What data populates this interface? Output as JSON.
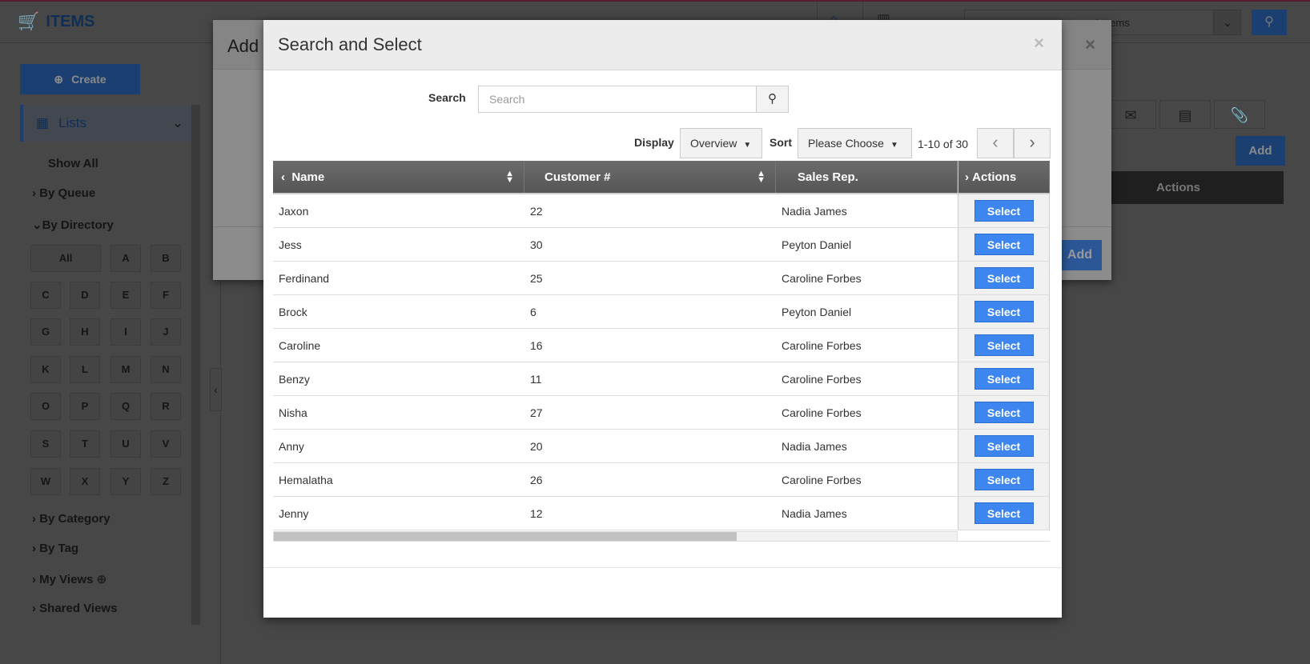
{
  "app": {
    "title": "ITEMS",
    "global_search_placeholder": "search items",
    "accent": "#2a7ae2"
  },
  "sidebar": {
    "create_label": "Create",
    "lists_label": "Lists",
    "show_all": "Show All",
    "by_queue": "By Queue",
    "by_directory": "By Directory",
    "letters": [
      "All",
      "A",
      "B",
      "C",
      "D",
      "E",
      "F",
      "G",
      "H",
      "I",
      "J",
      "K",
      "L",
      "M",
      "N",
      "O",
      "P",
      "Q",
      "R",
      "S",
      "T",
      "U",
      "V",
      "W",
      "X",
      "Y",
      "Z"
    ],
    "by_category": "By Category",
    "by_tag": "By Tag",
    "my_views": "My Views",
    "shared_views": "Shared Views"
  },
  "background": {
    "add_label": "Add",
    "actions_header": "Actions"
  },
  "back_modal": {
    "title": "Add",
    "close": "×",
    "add_label": "Add"
  },
  "modal": {
    "title": "Search and Select",
    "close": "×",
    "search_label": "Search",
    "search_placeholder": "Search",
    "display_label": "Display",
    "display_value": "Overview",
    "sort_label": "Sort",
    "sort_value": "Please Choose",
    "range": "1-10 of 30",
    "columns": [
      "Name",
      "Customer #",
      "Sales Rep.",
      "Actions"
    ],
    "select_label": "Select",
    "rows": [
      {
        "name": "Jaxon",
        "customer": "22",
        "rep": "Nadia James"
      },
      {
        "name": "Jess",
        "customer": "30",
        "rep": "Peyton Daniel"
      },
      {
        "name": "Ferdinand",
        "customer": "25",
        "rep": "Caroline Forbes"
      },
      {
        "name": "Brock",
        "customer": "6",
        "rep": "Peyton Daniel"
      },
      {
        "name": "Caroline",
        "customer": "16",
        "rep": "Caroline Forbes"
      },
      {
        "name": "Benzy",
        "customer": "11",
        "rep": "Caroline Forbes"
      },
      {
        "name": "Nisha",
        "customer": "27",
        "rep": "Caroline Forbes"
      },
      {
        "name": "Anny",
        "customer": "20",
        "rep": "Nadia James"
      },
      {
        "name": "Hemalatha",
        "customer": "26",
        "rep": "Caroline Forbes"
      },
      {
        "name": "Jenny",
        "customer": "12",
        "rep": "Nadia James"
      }
    ]
  }
}
